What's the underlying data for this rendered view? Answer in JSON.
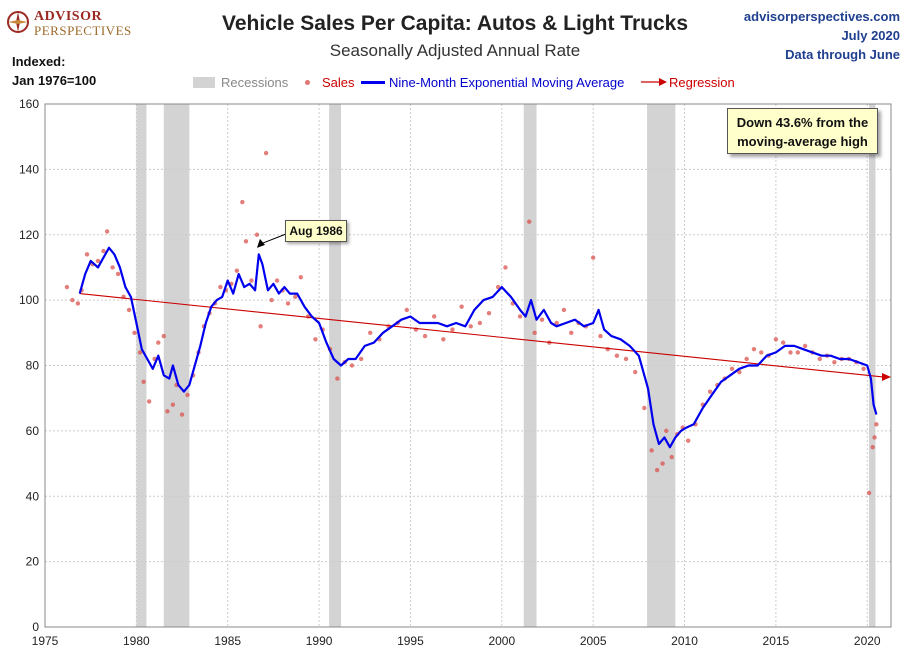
{
  "logo": {
    "line1": "ADVISOR",
    "line2": "PERSPECTIVES"
  },
  "site": {
    "url": "advisorperspectives.com",
    "date": "July 2020",
    "through": "Data through June"
  },
  "index_note": {
    "line1": "Indexed:",
    "line2": "Jan 1976=100"
  },
  "colors": {
    "sales": "#d9534f",
    "ema": "#0000ee",
    "regression": "#cc0000",
    "recession": "#d3d3d3",
    "callout_bg": "#ffffcc"
  },
  "chart_data": {
    "type": "line",
    "title": "Vehicle Sales Per Capita: Autos & Light Trucks",
    "subtitle": "Seasonally Adjusted Annual Rate",
    "legend": [
      "Recessions",
      "Sales",
      "Nine-Month Exponential Moving Average",
      "Regression"
    ],
    "xlim": [
      1975,
      2021.3
    ],
    "ylim": [
      0,
      160
    ],
    "x_ticks": [
      1975,
      1980,
      1985,
      1990,
      1995,
      2000,
      2005,
      2010,
      2015,
      2020
    ],
    "y_ticks": [
      0,
      20,
      40,
      60,
      80,
      100,
      120,
      140,
      160
    ],
    "grid": true,
    "recessions": [
      [
        1980.0,
        1980.55
      ],
      [
        1981.5,
        1982.9
      ],
      [
        1990.55,
        1991.2
      ],
      [
        2001.2,
        2001.9
      ],
      [
        2007.95,
        2009.5
      ],
      [
        2020.1,
        2020.45
      ]
    ],
    "series": [
      {
        "name": "Nine-Month Exponential Moving Average",
        "x": [
          1976.9,
          1977.2,
          1977.5,
          1977.9,
          1978.2,
          1978.5,
          1978.8,
          1979.1,
          1979.4,
          1979.7,
          1980.0,
          1980.3,
          1980.6,
          1980.9,
          1981.2,
          1981.5,
          1981.8,
          1982.0,
          1982.3,
          1982.6,
          1982.9,
          1983.2,
          1983.5,
          1983.8,
          1984.1,
          1984.4,
          1984.7,
          1985.0,
          1985.3,
          1985.6,
          1985.9,
          1986.2,
          1986.5,
          1986.7,
          1986.9,
          1987.2,
          1987.5,
          1987.8,
          1988.1,
          1988.4,
          1988.8,
          1989.2,
          1989.6,
          1990.0,
          1990.4,
          1990.8,
          1991.2,
          1991.6,
          1992.0,
          1992.5,
          1993.0,
          1993.5,
          1994.0,
          1994.5,
          1995.0,
          1995.5,
          1996.0,
          1996.5,
          1997.0,
          1997.5,
          1998.0,
          1998.5,
          1999.0,
          1999.5,
          2000.0,
          2000.5,
          2001.0,
          2001.3,
          2001.6,
          2001.9,
          2002.3,
          2002.7,
          2003.0,
          2003.5,
          2004.0,
          2004.5,
          2005.0,
          2005.3,
          2005.6,
          2006.0,
          2006.5,
          2007.0,
          2007.5,
          2008.0,
          2008.3,
          2008.6,
          2008.9,
          2009.2,
          2009.5,
          2009.8,
          2010.1,
          2010.5,
          2011.0,
          2011.5,
          2012.0,
          2012.5,
          2013.0,
          2013.5,
          2014.0,
          2014.5,
          2015.0,
          2015.5,
          2016.0,
          2016.5,
          2017.0,
          2017.5,
          2018.0,
          2018.5,
          2019.0,
          2019.5,
          2020.0,
          2020.2,
          2020.35,
          2020.5
        ],
        "values": [
          102,
          108,
          112,
          110,
          113,
          116,
          114,
          110,
          104,
          101,
          93,
          85,
          82,
          79,
          83,
          77,
          76,
          80,
          74,
          72,
          74,
          80,
          86,
          93,
          98,
          100,
          101,
          106,
          102,
          108,
          104,
          105,
          103,
          114,
          111,
          103,
          105,
          102,
          104,
          102,
          102,
          98,
          95,
          93,
          87,
          82,
          80,
          82,
          82,
          86,
          87,
          90,
          92,
          94,
          95,
          93,
          93,
          93,
          92,
          93,
          92,
          97,
          100,
          101,
          104,
          101,
          97,
          95,
          100,
          94,
          97,
          93,
          92,
          93,
          94,
          92,
          93,
          97,
          91,
          89,
          88,
          86,
          83,
          73,
          62,
          56,
          58,
          55,
          58,
          60,
          61,
          62,
          67,
          71,
          75,
          77,
          79,
          80,
          80,
          83,
          84,
          86,
          86,
          85,
          84,
          83,
          83,
          82,
          82,
          81,
          80,
          76,
          68,
          65
        ]
      },
      {
        "name": "Regression",
        "x": [
          1976.9,
          2021.3
        ],
        "values": [
          102,
          76.5
        ]
      },
      {
        "name": "Sales",
        "x": [
          1976.2,
          1976.5,
          1976.8,
          1977.0,
          1977.3,
          1977.6,
          1977.9,
          1978.2,
          1978.4,
          1978.7,
          1979.0,
          1979.3,
          1979.6,
          1979.9,
          1980.2,
          1980.4,
          1980.7,
          1981.0,
          1981.2,
          1981.5,
          1981.7,
          1982.0,
          1982.2,
          1982.5,
          1982.8,
          1983.1,
          1983.4,
          1983.7,
          1984.0,
          1984.3,
          1984.6,
          1984.9,
          1985.2,
          1985.5,
          1985.8,
          1986.0,
          1986.3,
          1986.6,
          1986.8,
          1987.1,
          1987.4,
          1987.7,
          1988.0,
          1988.3,
          1988.7,
          1989.0,
          1989.4,
          1989.8,
          1990.2,
          1990.6,
          1991.0,
          1991.4,
          1991.8,
          1992.3,
          1992.8,
          1993.3,
          1993.8,
          1994.3,
          1994.8,
          1995.3,
          1995.8,
          1996.3,
          1996.8,
          1997.3,
          1997.8,
          1998.3,
          1998.8,
          1999.3,
          1999.8,
          2000.2,
          2000.6,
          2001.0,
          2001.5,
          2001.8,
          2002.2,
          2002.6,
          2003.0,
          2003.4,
          2003.8,
          2004.2,
          2004.6,
          2005.0,
          2005.4,
          2005.8,
          2006.3,
          2006.8,
          2007.3,
          2007.8,
          2008.2,
          2008.5,
          2008.8,
          2009.0,
          2009.3,
          2009.6,
          2009.9,
          2010.2,
          2010.6,
          2011.0,
          2011.4,
          2011.8,
          2012.2,
          2012.6,
          2013.0,
          2013.4,
          2013.8,
          2014.2,
          2014.6,
          2015.0,
          2015.4,
          2015.8,
          2016.2,
          2016.6,
          2017.0,
          2017.4,
          2017.8,
          2018.2,
          2018.6,
          2019.0,
          2019.4,
          2019.8,
          2020.1,
          2020.3,
          2020.4,
          2020.5
        ],
        "values": [
          104,
          100,
          99,
          103,
          114,
          111,
          112,
          115,
          121,
          110,
          108,
          101,
          97,
          90,
          84,
          75,
          69,
          82,
          87,
          89,
          66,
          68,
          74,
          65,
          71,
          77,
          84,
          92,
          96,
          99,
          104,
          103,
          105,
          109,
          130,
          118,
          106,
          120,
          92,
          145,
          100,
          106,
          103,
          99,
          101,
          107,
          95,
          88,
          91,
          85,
          76,
          81,
          80,
          82,
          90,
          88,
          92,
          93,
          97,
          91,
          89,
          95,
          88,
          91,
          98,
          92,
          93,
          96,
          104,
          110,
          99,
          95,
          124,
          90,
          94,
          87,
          93,
          97,
          90,
          93,
          92,
          113,
          89,
          85,
          83,
          82,
          78,
          67,
          54,
          48,
          50,
          60,
          52,
          59,
          61,
          57,
          62,
          68,
          72,
          74,
          76,
          79,
          78,
          82,
          85,
          84,
          83,
          88,
          87,
          84,
          84,
          86,
          84,
          82,
          83,
          81,
          82,
          82,
          81,
          79,
          41,
          55,
          58,
          62
        ]
      }
    ],
    "annotations": [
      {
        "text": "Aug 1986",
        "x": 1986.6,
        "y": 116
      },
      {
        "text_line1": "Down 43.6% from the",
        "text_line2": "moving-average high"
      }
    ]
  }
}
